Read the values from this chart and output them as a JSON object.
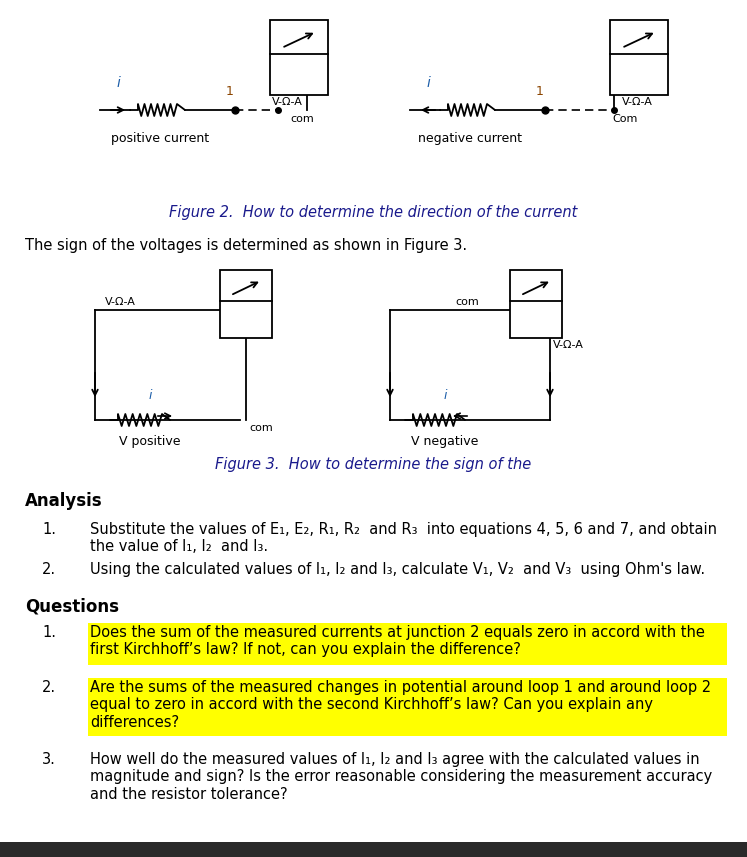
{
  "bg_color": "#ffffff",
  "fig2_caption": "Figure 2.  How to determine the direction of the current",
  "fig3_caption": "Figure 3.  How to determine the sign of the",
  "voltage_text": "The sign of the voltages is determined as shown in Figure 3.",
  "analysis_header": "Analysis",
  "questions_header": "Questions",
  "q1_text": "Does the sum of the measured currents at junction 2 equals zero in accord with the\nfirst Kirchhoff’s law? If not, can you explain the difference?",
  "q2_text": "Are the sums of the measured changes in potential around loop 1 and around loop 2\nequal to zero in accord with the second Kirchhoff’s law? Can you explain any\ndifferences?",
  "q3_text": "How well do the measured values of I₁, I₂ and I₃ agree with the calculated values in\nmagnitude and sign? Is the error reasonable considering the measurement accuracy\nand the resistor tolerance?",
  "highlight_color": "#ffff00",
  "bottom_bar_color": "#2a2a2a",
  "text_color": "#000000",
  "blue_text_color": "#1a1a8c"
}
